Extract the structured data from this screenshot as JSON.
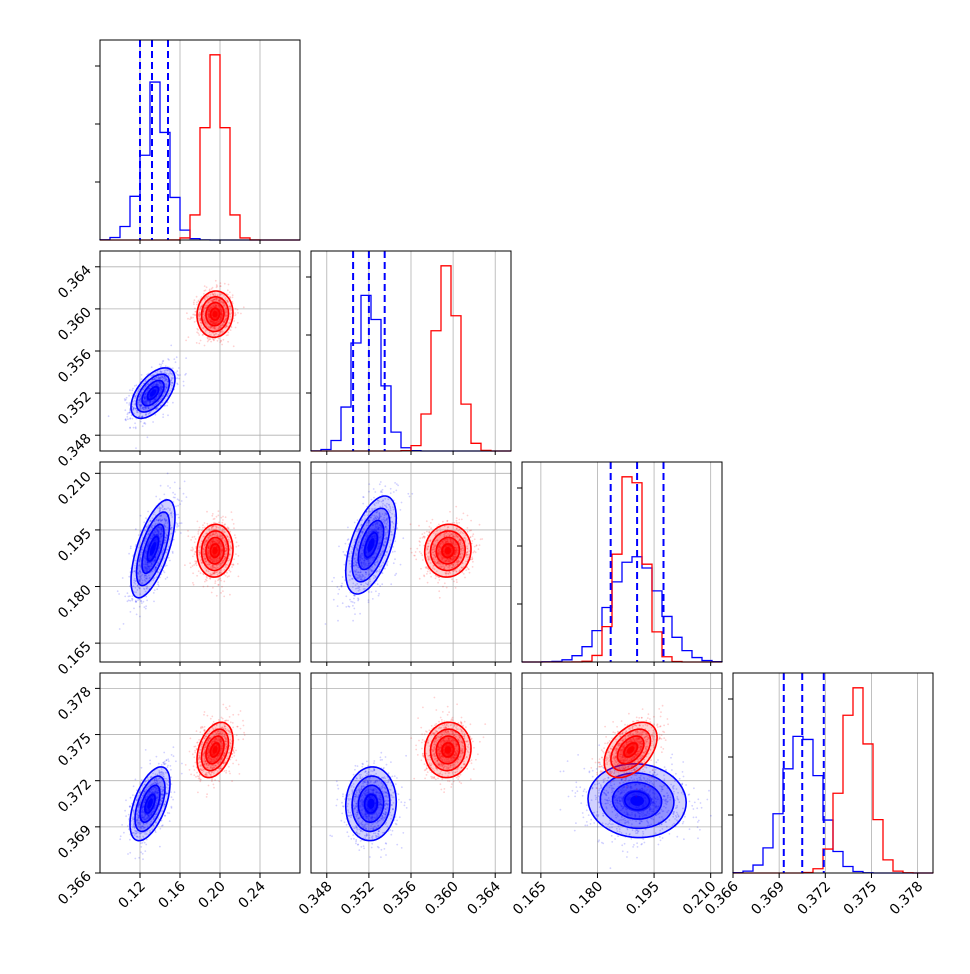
{
  "chart_data": {
    "type": "corner",
    "grid": true,
    "series": [
      {
        "color": "#0000ff"
      },
      {
        "color": "#ff0000"
      }
    ],
    "parameters": [
      {
        "ticks": [
          0.12,
          0.16,
          0.2,
          0.24
        ],
        "tick_labels": [
          "0.12",
          "0.16",
          "0.20",
          "0.24"
        ],
        "range": [
          0.08,
          0.28
        ],
        "hist": {
          "blue": {
            "mean": 0.133,
            "sd": 0.014,
            "skew": 0.03
          },
          "red": {
            "mean": 0.195,
            "sd": 0.01,
            "skew": 0.0
          }
        },
        "quantiles_blue": [
          0.12,
          0.132,
          0.148
        ]
      },
      {
        "ticks": [
          0.348,
          0.352,
          0.356,
          0.36,
          0.364
        ],
        "tick_labels": [
          "0.348",
          "0.352",
          "0.356",
          "0.360",
          "0.364"
        ],
        "range": [
          0.3465,
          0.3655
        ],
        "hist": {
          "blue": {
            "mean": 0.3519,
            "sd": 0.0013
          },
          "red": {
            "mean": 0.3594,
            "sd": 0.0011
          }
        },
        "quantiles_blue": [
          0.3505,
          0.352,
          0.3535
        ]
      },
      {
        "ticks": [
          0.165,
          0.18,
          0.195,
          0.21
        ],
        "tick_labels": [
          "0.165",
          "0.180",
          "0.195",
          "0.210"
        ],
        "range": [
          0.16,
          0.213
        ],
        "hist": {
          "blue": {
            "mean": 0.19,
            "sd": 0.0065
          },
          "red": {
            "mean": 0.189,
            "sd": 0.0035
          }
        },
        "quantiles_blue": [
          0.1835,
          0.1905,
          0.1975
        ]
      },
      {
        "ticks": [
          0.366,
          0.369,
          0.372,
          0.375,
          0.378
        ],
        "tick_labels": [
          "0.366",
          "0.369",
          "0.372",
          "0.375",
          "0.378"
        ],
        "range": [
          0.366,
          0.379
        ],
        "hist": {
          "blue": {
            "mean": 0.3705,
            "sd": 0.0012
          },
          "red": {
            "mean": 0.374,
            "sd": 0.0009
          }
        },
        "quantiles_blue": [
          0.3693,
          0.3705,
          0.3719
        ]
      }
    ],
    "scatter_2d": [
      {
        "row": 1,
        "col": 0,
        "blue": {
          "mx": 0.133,
          "my": 0.352,
          "sx": 0.011,
          "sy": 0.0012,
          "rho": 0.55
        },
        "red": {
          "mx": 0.195,
          "my": 0.3595,
          "sx": 0.009,
          "sy": 0.0011,
          "rho": 0.05
        }
      },
      {
        "row": 2,
        "col": 0,
        "blue": {
          "mx": 0.133,
          "my": 0.19,
          "sx": 0.011,
          "sy": 0.0065,
          "rho": 0.65
        },
        "red": {
          "mx": 0.195,
          "my": 0.1895,
          "sx": 0.009,
          "sy": 0.0035,
          "rho": 0.05
        }
      },
      {
        "row": 2,
        "col": 1,
        "blue": {
          "mx": 0.3522,
          "my": 0.191,
          "sx": 0.0012,
          "sy": 0.0065,
          "rho": 0.55
        },
        "red": {
          "mx": 0.3595,
          "my": 0.1895,
          "sx": 0.0011,
          "sy": 0.0035,
          "rho": 0.05
        }
      },
      {
        "row": 3,
        "col": 0,
        "blue": {
          "mx": 0.13,
          "my": 0.3705,
          "sx": 0.01,
          "sy": 0.0012,
          "rho": 0.55
        },
        "red": {
          "mx": 0.195,
          "my": 0.374,
          "sx": 0.009,
          "sy": 0.0009,
          "rho": 0.35
        }
      },
      {
        "row": 3,
        "col": 1,
        "blue": {
          "mx": 0.3522,
          "my": 0.3705,
          "sx": 0.0012,
          "sy": 0.0012,
          "rho": 0.05
        },
        "red": {
          "mx": 0.3595,
          "my": 0.374,
          "sx": 0.0011,
          "sy": 0.0009,
          "rho": 0.05
        }
      },
      {
        "row": 3,
        "col": 2,
        "blue": {
          "mx": 0.1905,
          "my": 0.3707,
          "sx": 0.0065,
          "sy": 0.0012,
          "rho": -0.05
        },
        "red": {
          "mx": 0.1888,
          "my": 0.374,
          "sx": 0.0035,
          "sy": 0.0009,
          "rho": 0.45
        }
      }
    ]
  }
}
